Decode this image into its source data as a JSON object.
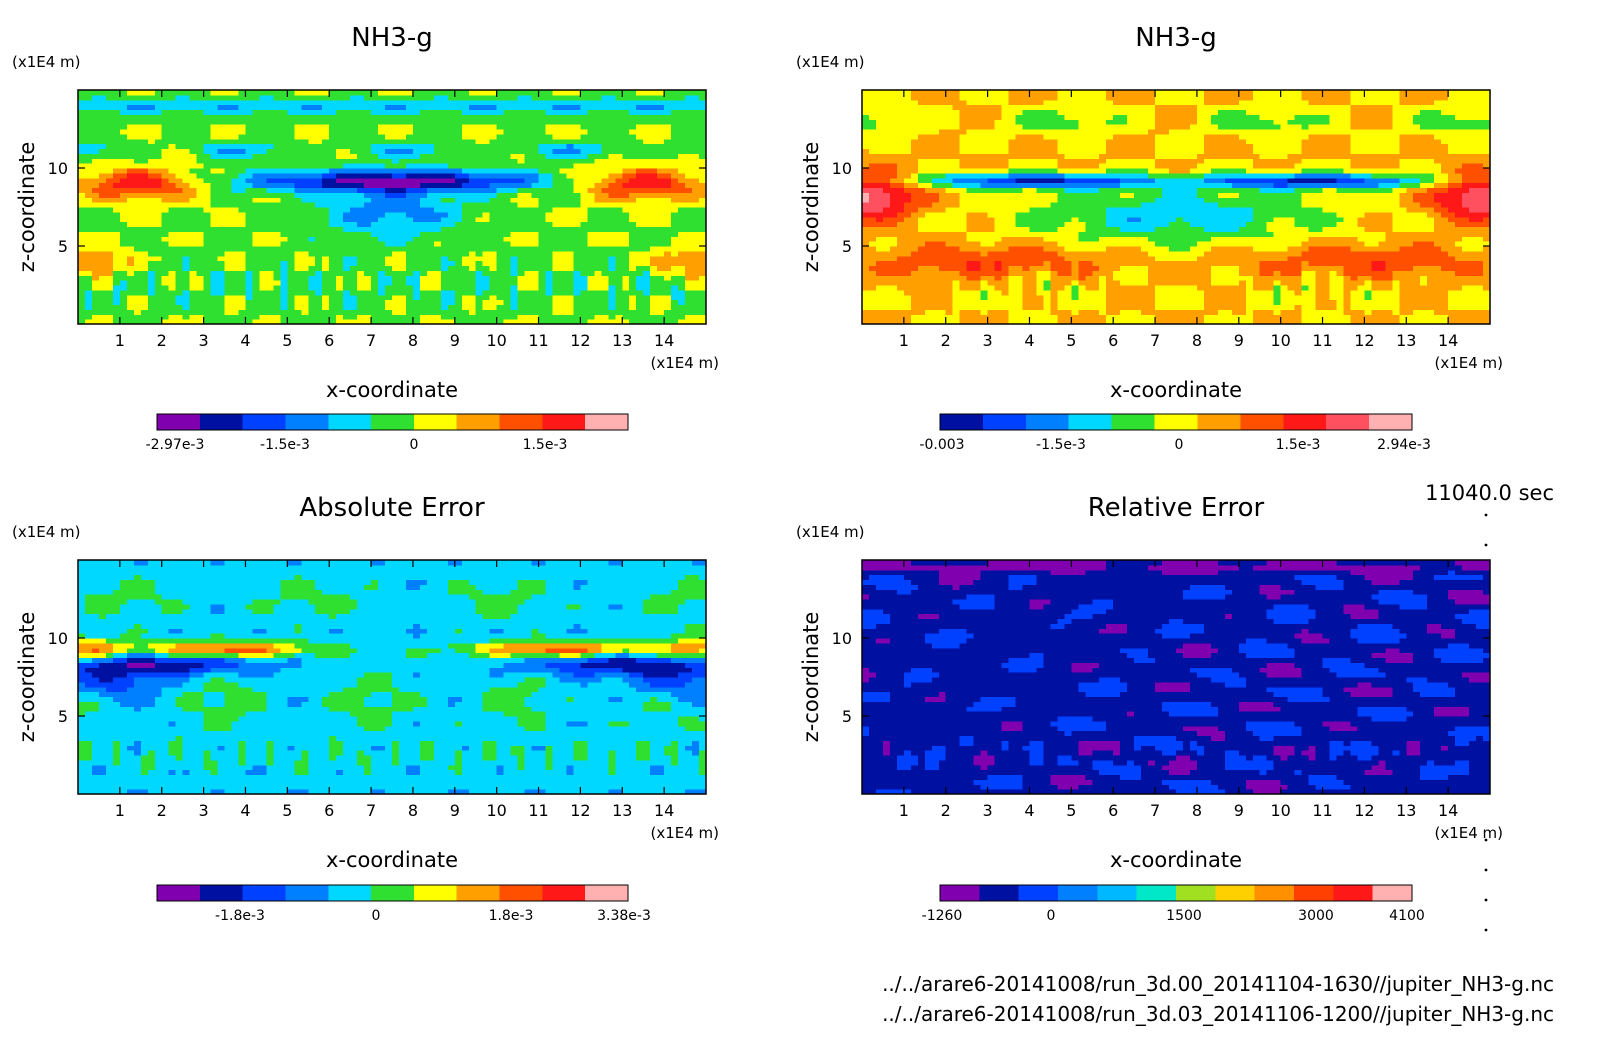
{
  "time": "11040.0 sec",
  "footer": {
    "line1": "../../arare6-20141008/run_3d.00_20141104-1630//jupiter_NH3-g.nc",
    "line2": "../../arare6-20141008/run_3d.03_20141106-1200//jupiter_NH3-g.nc"
  },
  "chart_data": [
    {
      "type": "heatmap",
      "title": "NH3-g",
      "xlabel": "x-coordinate",
      "ylabel": "z-coordinate",
      "x_unit": "(x1E4 m)",
      "y_unit": "(x1E4 m)",
      "xlim": [
        0,
        15
      ],
      "ylim": [
        0,
        15
      ],
      "x_ticks": [
        "1",
        "2",
        "3",
        "4",
        "5",
        "6",
        "7",
        "8",
        "9",
        "10",
        "11",
        "12",
        "13",
        "14"
      ],
      "y_ticks": [
        "5",
        "10"
      ],
      "colormap": [
        "#8000b0",
        "#0010a0",
        "#0040ff",
        "#0080ff",
        "#00d8ff",
        "#30e030",
        "#ffff00",
        "#ffa000",
        "#ff5000",
        "#ff1818",
        "#ffb0b0"
      ],
      "colorbar_labels": [
        "-2.97e-3",
        "-1.5e-3",
        "0",
        "1.5e-3"
      ],
      "field": "A"
    },
    {
      "type": "heatmap",
      "title": "NH3-g",
      "xlabel": "x-coordinate",
      "ylabel": "z-coordinate",
      "x_unit": "(x1E4 m)",
      "y_unit": "(x1E4 m)",
      "xlim": [
        0,
        15
      ],
      "ylim": [
        0,
        15
      ],
      "x_ticks": [
        "1",
        "2",
        "3",
        "4",
        "5",
        "6",
        "7",
        "8",
        "9",
        "10",
        "11",
        "12",
        "13",
        "14"
      ],
      "y_ticks": [
        "5",
        "10"
      ],
      "colormap": [
        "#0010a0",
        "#0040ff",
        "#0080ff",
        "#00d8ff",
        "#30e030",
        "#ffff00",
        "#ffa000",
        "#ff5000",
        "#ff1818",
        "#ff5060",
        "#ffb0b0"
      ],
      "colorbar_labels": [
        "-0.003",
        "-1.5e-3",
        "0",
        "1.5e-3",
        "2.94e-3"
      ],
      "field": "B"
    },
    {
      "type": "heatmap",
      "title": "Absolute Error",
      "xlabel": "x-coordinate",
      "ylabel": "z-coordinate",
      "x_unit": "(x1E4 m)",
      "y_unit": "(x1E4 m)",
      "xlim": [
        0,
        15
      ],
      "ylim": [
        0,
        15
      ],
      "x_ticks": [
        "1",
        "2",
        "3",
        "4",
        "5",
        "6",
        "7",
        "8",
        "9",
        "10",
        "11",
        "12",
        "13",
        "14"
      ],
      "y_ticks": [
        "5",
        "10"
      ],
      "colormap": [
        "#8000b0",
        "#0010a0",
        "#0040ff",
        "#0080ff",
        "#00d8ff",
        "#30e030",
        "#ffff00",
        "#ffa000",
        "#ff5000",
        "#ff1818",
        "#ffb0b0"
      ],
      "colorbar_labels": [
        "-1.8e-3",
        "0",
        "1.8e-3",
        "3.38e-3"
      ],
      "field": "C"
    },
    {
      "type": "heatmap",
      "title": "Relative Error",
      "xlabel": "x-coordinate",
      "ylabel": "z-coordinate",
      "x_unit": "(x1E4 m)",
      "y_unit": "(x1E4 m)",
      "xlim": [
        0,
        15
      ],
      "ylim": [
        0,
        15
      ],
      "x_ticks": [
        "1",
        "2",
        "3",
        "4",
        "5",
        "6",
        "7",
        "8",
        "9",
        "10",
        "11",
        "12",
        "13",
        "14"
      ],
      "y_ticks": [
        "5",
        "10"
      ],
      "colormap": [
        "#8000b0",
        "#0010a0",
        "#0040ff",
        "#0080ff",
        "#00b8ff",
        "#00e8c8",
        "#a0e020",
        "#ffd000",
        "#ff9000",
        "#ff4000",
        "#ff1818",
        "#ffb0b0"
      ],
      "colorbar_labels": [
        "-1260",
        "0",
        "1500",
        "3000",
        "4100"
      ],
      "field": "D"
    }
  ]
}
